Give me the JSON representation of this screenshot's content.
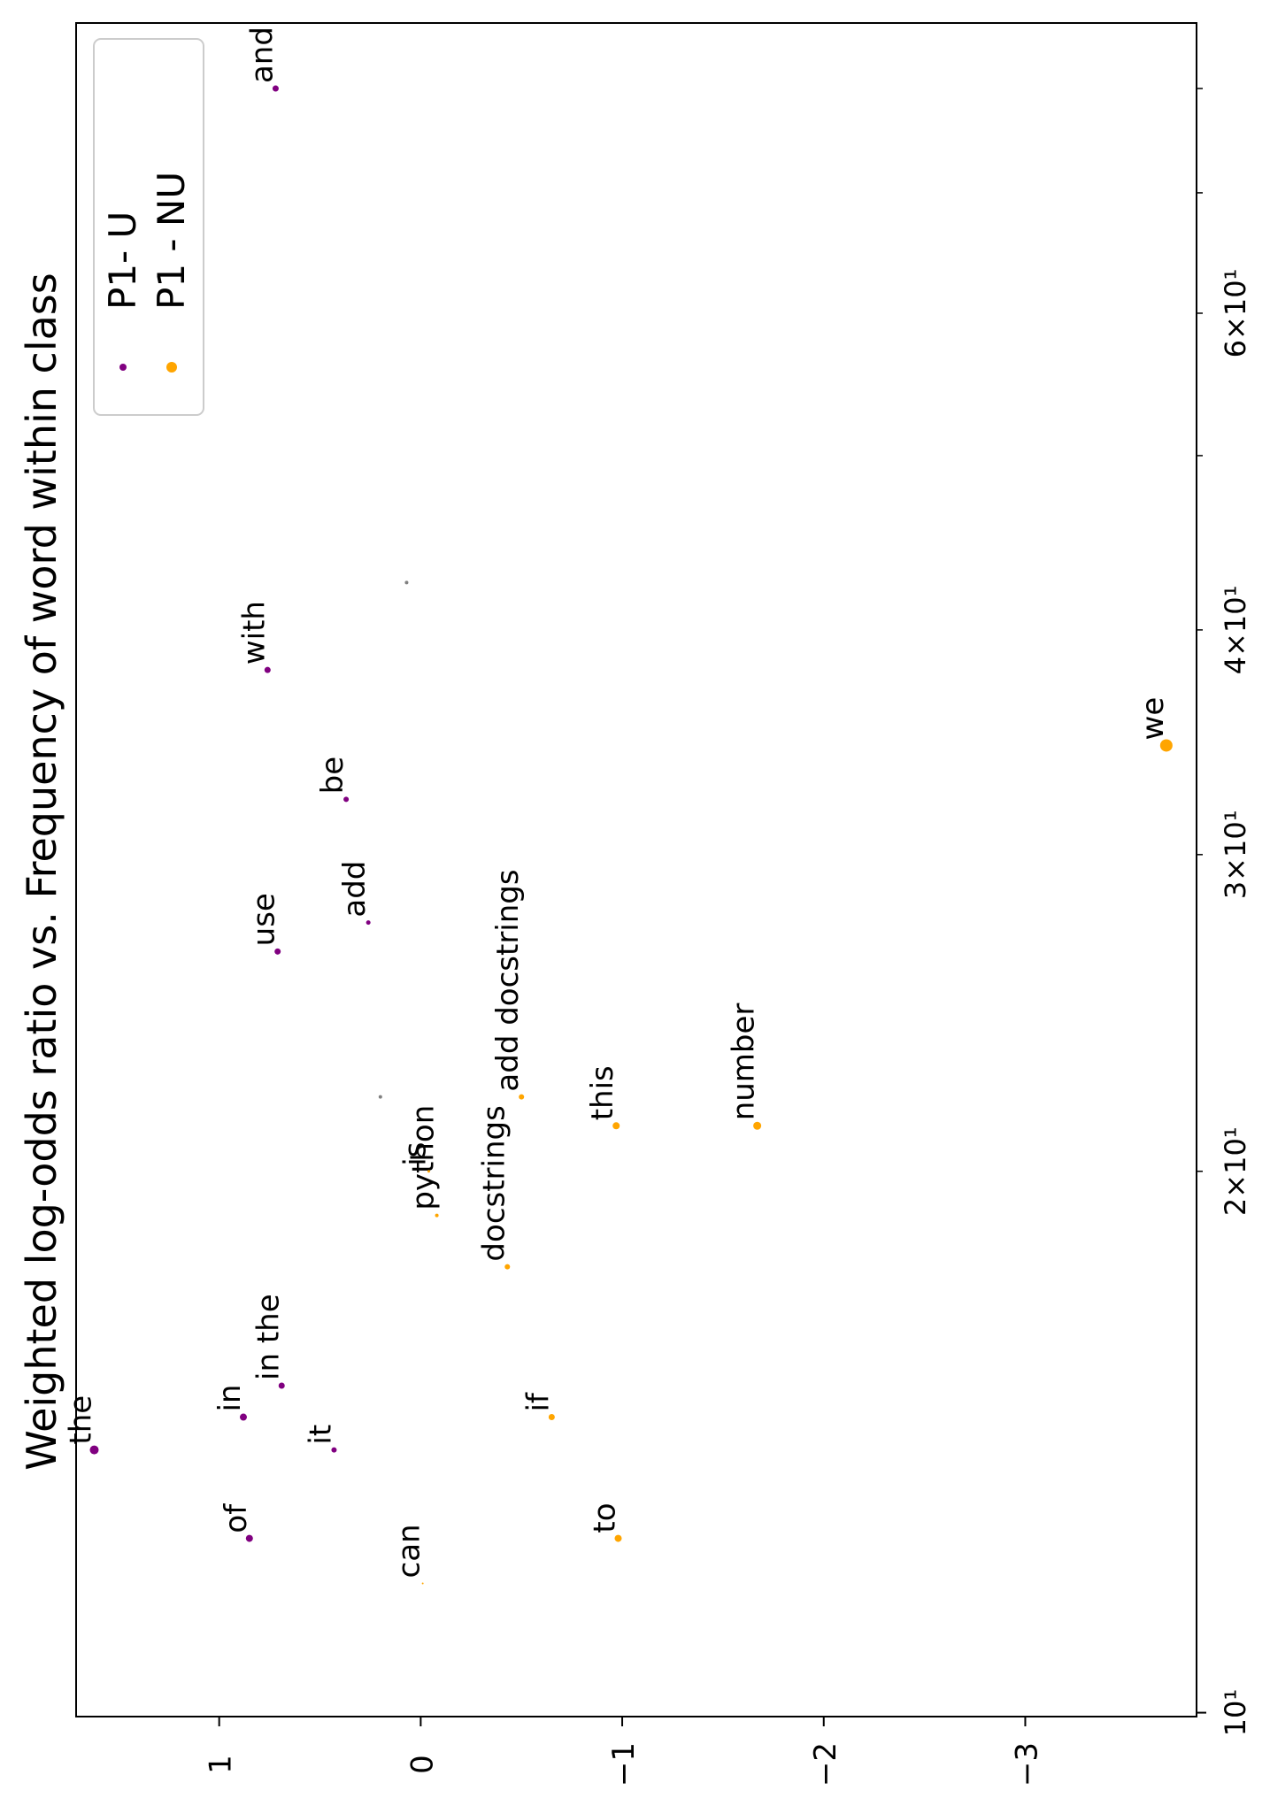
{
  "chart_data": {
    "type": "scatter",
    "title": "Weighted log-odds ratio vs. Frequency of word within class",
    "xlabel": "",
    "ylabel": "",
    "x_scale": "log",
    "xlim": [
      9.95,
      87
    ],
    "ylim": [
      1.71,
      -3.85
    ],
    "x_major_ticks": [
      {
        "value": 10,
        "label": "10¹"
      }
    ],
    "x_minor_ticks": [
      {
        "value": 20,
        "label": "2×10¹"
      },
      {
        "value": 30,
        "label": "3×10¹"
      },
      {
        "value": 40,
        "label": "4×10¹"
      },
      {
        "value": 50,
        "label": ""
      },
      {
        "value": 60,
        "label": "6×10¹"
      },
      {
        "value": 70,
        "label": ""
      },
      {
        "value": 80,
        "label": ""
      }
    ],
    "y_ticks": [
      {
        "value": 1,
        "label": "1"
      },
      {
        "value": 0,
        "label": "0"
      },
      {
        "value": -1,
        "label": "−1"
      },
      {
        "value": -2,
        "label": "−2"
      },
      {
        "value": -3,
        "label": "−3"
      }
    ],
    "grid": false,
    "legend": {
      "placement": "top-right",
      "entries": [
        "P1- U",
        "P1 - NU"
      ]
    },
    "colors": {
      "P1- U": "#800080",
      "P1 - NU": "#ffa500",
      "neutral": "#808080"
    },
    "series": [
      {
        "name": "P1- U",
        "points": [
          {
            "word": "the",
            "x": 14,
            "y": 1.62,
            "size": 5
          },
          {
            "word": "of",
            "x": 12.5,
            "y": 0.85,
            "size": 4
          },
          {
            "word": "in",
            "x": 14.6,
            "y": 0.88,
            "size": 4
          },
          {
            "word": "it",
            "x": 14,
            "y": 0.43,
            "size": 3
          },
          {
            "word": "in the",
            "x": 15.2,
            "y": 0.69,
            "size": 3.5
          },
          {
            "word": "use",
            "x": 26.5,
            "y": 0.71,
            "size": 3.5
          },
          {
            "word": "add",
            "x": 27.5,
            "y": 0.26,
            "size": 2.5
          },
          {
            "word": "be",
            "x": 32.2,
            "y": 0.37,
            "size": 3
          },
          {
            "word": "with",
            "x": 38,
            "y": 0.76,
            "size": 3.5
          },
          {
            "word": "and",
            "x": 80,
            "y": 0.72,
            "size": 3.5
          }
        ]
      },
      {
        "name": "P1 - NU",
        "points": [
          {
            "word": "can",
            "x": 11.8,
            "y": -0.01,
            "size": 1
          },
          {
            "word": "to",
            "x": 12.5,
            "y": -0.98,
            "size": 4
          },
          {
            "word": "if",
            "x": 14.6,
            "y": -0.65,
            "size": 3.5
          },
          {
            "word": "docstrings",
            "x": 17.7,
            "y": -0.43,
            "size": 3
          },
          {
            "word": "python",
            "x": 18.9,
            "y": -0.08,
            "size": 2
          },
          {
            "word": "is",
            "x": 20,
            "y": -0.04,
            "size": 1.5
          },
          {
            "word": "add docstrings",
            "x": 22,
            "y": -0.5,
            "size": 3
          },
          {
            "word": "this",
            "x": 21.2,
            "y": -0.97,
            "size": 4
          },
          {
            "word": "number",
            "x": 21.2,
            "y": -1.67,
            "size": 4.5
          },
          {
            "word": "we",
            "x": 34.5,
            "y": -3.7,
            "size": 7
          }
        ]
      },
      {
        "name": "",
        "points": [
          {
            "word": "",
            "x": 22,
            "y": 0.2,
            "size": 2
          },
          {
            "word": "",
            "x": 42.5,
            "y": 0.07,
            "size": 2
          }
        ]
      }
    ]
  }
}
